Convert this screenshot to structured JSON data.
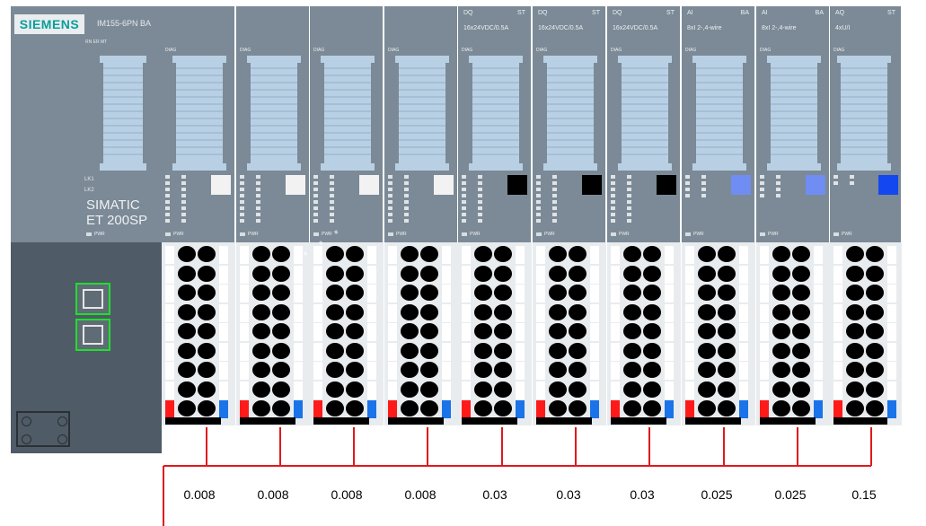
{
  "head": {
    "brand": "SIEMENS",
    "model": "IM155-6PN BA",
    "status_leds": "RN  ER  MT",
    "link1": "LK1",
    "link2": "LK2",
    "product_line1": "SIMATIC",
    "product_line2": "ET 200SP",
    "pwr": "PWR"
  },
  "modules": [
    {
      "type": "",
      "kind": "",
      "spec": "",
      "diag": "DIAG",
      "pwr": "PWR",
      "square": "#f2f2f2",
      "value": "0.008"
    },
    {
      "type": "",
      "kind": "",
      "spec": "",
      "diag": "DIAG",
      "pwr": "PWR",
      "square": "#f2f2f2",
      "value": "0.008"
    },
    {
      "type": "",
      "kind": "",
      "spec": "",
      "diag": "DIAG",
      "pwr": "PWR",
      "square": "#f2f2f2",
      "value": "0.008"
    },
    {
      "type": "",
      "kind": "",
      "spec": "",
      "diag": "DIAG",
      "pwr": "PWR",
      "square": "#f2f2f2",
      "value": "0.008"
    },
    {
      "type": "DQ",
      "kind": "ST",
      "spec": "16x24VDC/0.5A",
      "diag": "DIAG",
      "pwr": "PWR",
      "square": "#000000",
      "value": "0.03"
    },
    {
      "type": "DQ",
      "kind": "ST",
      "spec": "16x24VDC/0.5A",
      "diag": "DIAG",
      "pwr": "PWR",
      "square": "#000000",
      "value": "0.03"
    },
    {
      "type": "DQ",
      "kind": "ST",
      "spec": "16x24VDC/0.5A",
      "diag": "DIAG",
      "pwr": "PWR",
      "square": "#000000",
      "value": "0.03"
    },
    {
      "type": "AI",
      "kind": "BA",
      "spec": "8xI 2-,4-wire",
      "diag": "DIAG",
      "pwr": "PWR",
      "square": "#6f8df3",
      "value": "0.025"
    },
    {
      "type": "AI",
      "kind": "BA",
      "spec": "8xI 2-,4-wire",
      "diag": "DIAG",
      "pwr": "PWR",
      "square": "#6f8df3",
      "value": "0.025"
    },
    {
      "type": "AQ",
      "kind": "ST",
      "spec": "4xU/I",
      "diag": "DIAG",
      "pwr": "PWR",
      "square": "#1447f0",
      "value": "0.15"
    }
  ],
  "colors": {
    "module_body": "#7b8a96",
    "terminal_bg": "#e9ecef",
    "bus_line": "#e0191b",
    "port_border": "#1de02b",
    "red_marker": "#ff1a1a",
    "blue_marker": "#1a73e8"
  }
}
